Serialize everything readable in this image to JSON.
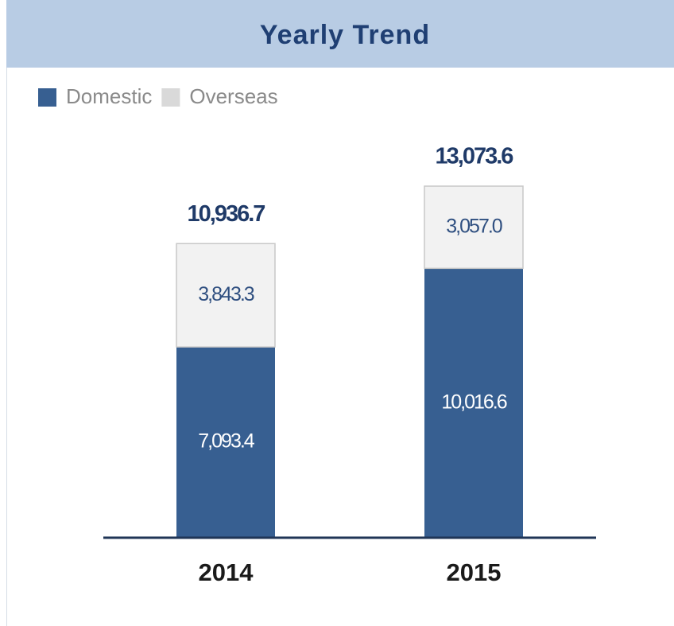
{
  "chart_data": {
    "type": "stacked_bar",
    "title": "Yearly Trend",
    "categories": [
      "2014",
      "2015"
    ],
    "series": [
      {
        "name": "Domestic",
        "color": "#375f91",
        "values": [
          7093.4,
          10016.6
        ],
        "value_labels": [
          "7,093.4",
          "10,016.6"
        ]
      },
      {
        "name": "Overseas",
        "color": "#f2f2f2",
        "values": [
          3843.3,
          3057.0
        ],
        "value_labels": [
          "3,843.3",
          "3,057.0"
        ]
      }
    ],
    "totals": [
      10936.7,
      13073.6
    ],
    "total_labels": [
      "10,936.7",
      "13,073.6"
    ],
    "legend": "top-left"
  }
}
